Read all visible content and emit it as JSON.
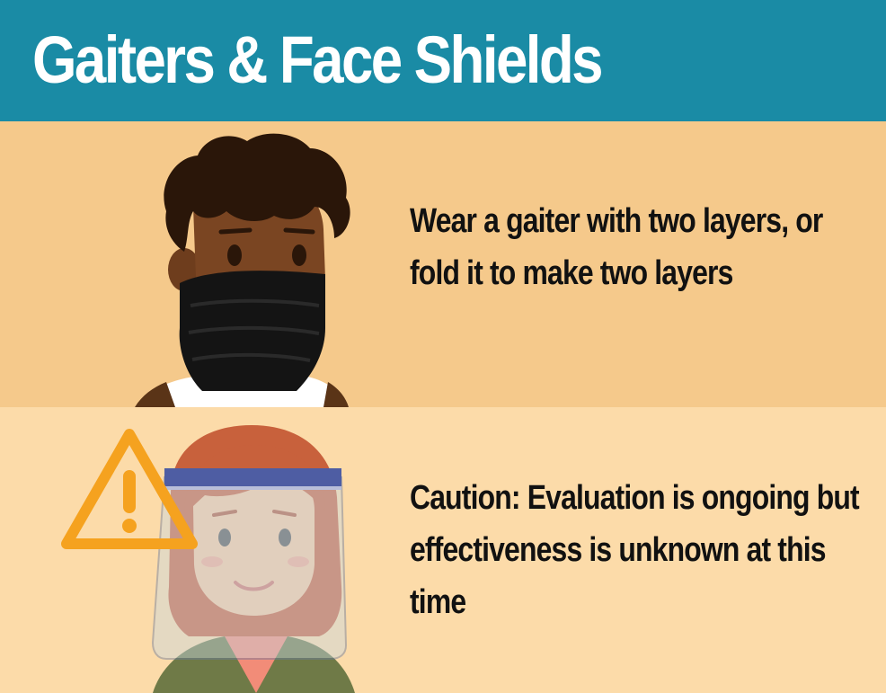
{
  "header": {
    "title": "Gaiters & Face Shields"
  },
  "sections": [
    {
      "illustration": "person-wearing-gaiter",
      "text": "Wear a gaiter with two layers, or fold it to make two layers"
    },
    {
      "illustration": "person-wearing-face-shield",
      "icon": "warning-triangle-icon",
      "text": "Caution: Evaluation is ongoing but effectiveness is unknown at this time"
    }
  ],
  "colors": {
    "header": "#1a8ba5",
    "panel_top": "#f5c98b",
    "panel_bottom": "#fcdba9",
    "warning": "#f5a21f"
  }
}
